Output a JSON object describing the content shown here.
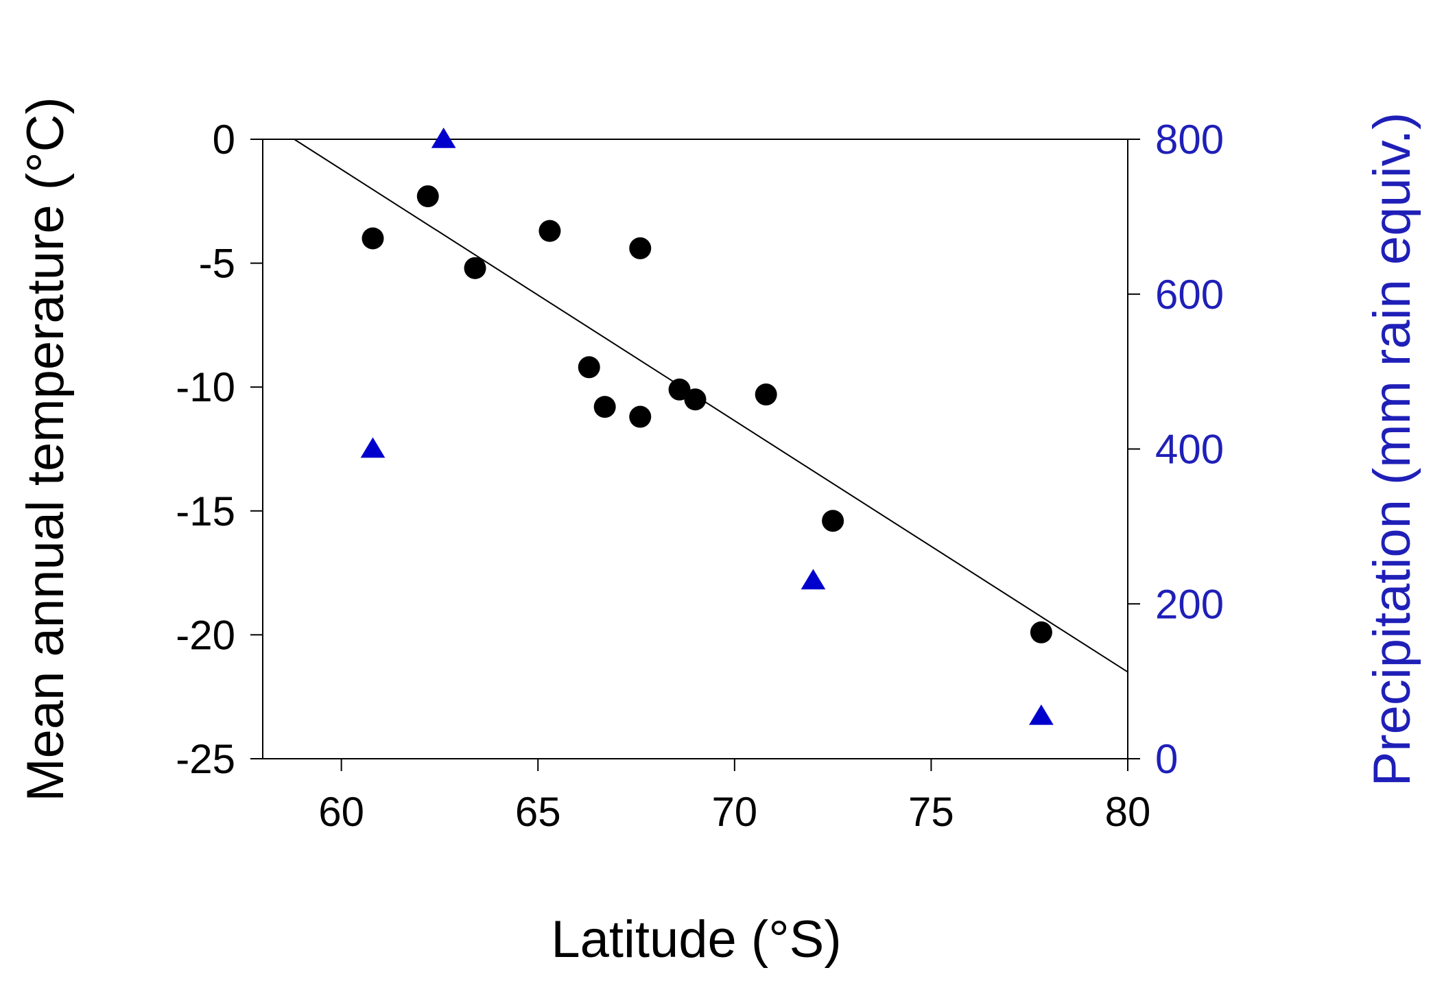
{
  "chart_data": {
    "type": "scatter",
    "title": "",
    "xlabel": "Latitude (°S)",
    "ylabel": "Mean annual temperature (°C)",
    "y2label": "Precipitation (mm rain equiv.)",
    "xlim": [
      58,
      80
    ],
    "ylim": [
      -25,
      0
    ],
    "y2lim": [
      0,
      800
    ],
    "xticks": [
      60,
      65,
      70,
      75,
      80
    ],
    "xtick_labels": [
      "60",
      "65",
      "70",
      "75",
      "80"
    ],
    "yticks": [
      0,
      -5,
      -10,
      -15,
      -20,
      -25
    ],
    "ytick_labels": [
      "0",
      "-5",
      "-10",
      "-15",
      "-20",
      "-25"
    ],
    "y2ticks": [
      800,
      600,
      400,
      200,
      0
    ],
    "y2tick_labels": [
      "800",
      "600",
      "400",
      "200",
      "0"
    ],
    "grid": false,
    "legend": "none",
    "colors": {
      "temperature": "#000000",
      "precipitation": "#0000cc",
      "right_axis_text": "#1f1fb8"
    },
    "series": [
      {
        "axis": "left",
        "marker": "circle",
        "points": [
          {
            "x": 60.8,
            "y": -4.0
          },
          {
            "x": 62.2,
            "y": -2.3
          },
          {
            "x": 63.4,
            "y": -5.2
          },
          {
            "x": 65.3,
            "y": -3.7
          },
          {
            "x": 67.6,
            "y": -4.4
          },
          {
            "x": 66.3,
            "y": -9.2
          },
          {
            "x": 66.7,
            "y": -10.8
          },
          {
            "x": 67.6,
            "y": -11.2
          },
          {
            "x": 68.6,
            "y": -10.1
          },
          {
            "x": 69.0,
            "y": -10.5
          },
          {
            "x": 70.8,
            "y": -10.3
          },
          {
            "x": 72.5,
            "y": -15.4
          },
          {
            "x": 77.8,
            "y": -19.9
          }
        ]
      },
      {
        "axis": "right",
        "marker": "triangle",
        "points": [
          {
            "x": 62.6,
            "y": 800
          },
          {
            "x": 60.8,
            "y": 400
          },
          {
            "x": 72.0,
            "y": 230
          },
          {
            "x": 77.8,
            "y": 55
          }
        ]
      }
    ],
    "trendline": {
      "axis": "left",
      "points": [
        {
          "x": 58.8,
          "y": 0
        },
        {
          "x": 80,
          "y": -21.5
        }
      ]
    }
  }
}
